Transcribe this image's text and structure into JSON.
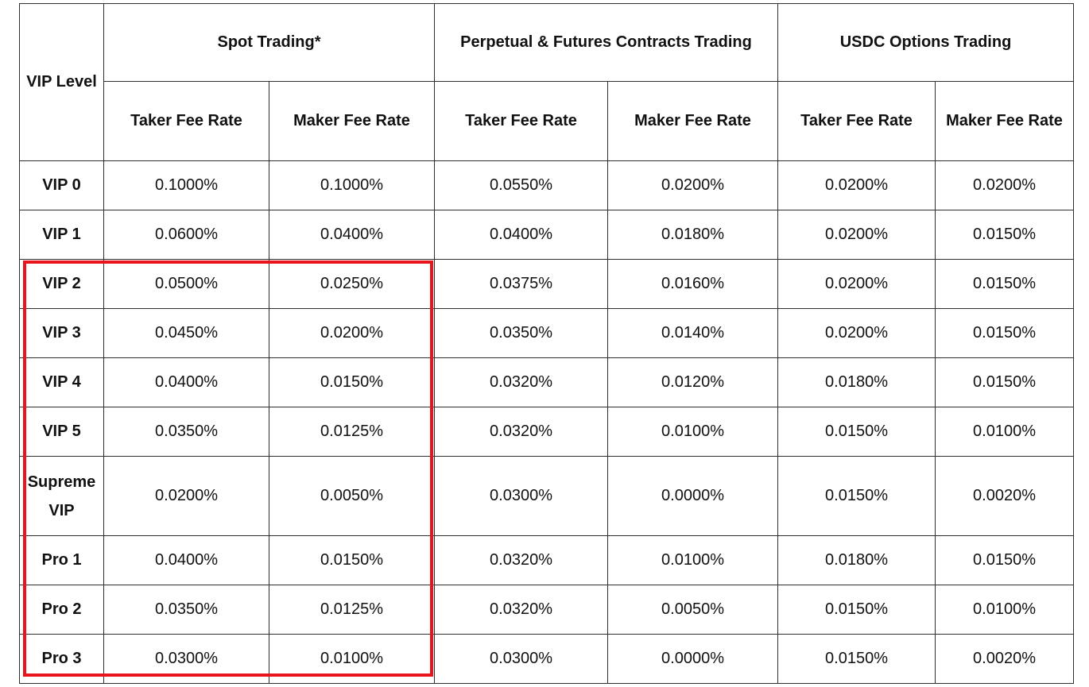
{
  "header": {
    "vip_level": "VIP Level",
    "spot": "Spot Trading*",
    "perp": "Perpetual & Futures Contracts Trading",
    "usdc": "USDC Options Trading",
    "sub": [
      "Taker Fee Rate",
      "Maker Fee Rate",
      "Taker Fee Rate",
      "Maker Fee Rate",
      "Taker Fee Rate",
      "Maker Fee Rate"
    ]
  },
  "rows": [
    {
      "level": "VIP 0",
      "values": [
        "0.1000%",
        "0.1000%",
        "0.0550%",
        "0.0200%",
        "0.0200%",
        "0.0200%"
      ]
    },
    {
      "level": "VIP 1",
      "values": [
        "0.0600%",
        "0.0400%",
        "0.0400%",
        "0.0180%",
        "0.0200%",
        "0.0150%"
      ]
    },
    {
      "level": "VIP 2",
      "values": [
        "0.0500%",
        "0.0250%",
        "0.0375%",
        "0.0160%",
        "0.0200%",
        "0.0150%"
      ]
    },
    {
      "level": "VIP 3",
      "values": [
        "0.0450%",
        "0.0200%",
        "0.0350%",
        "0.0140%",
        "0.0200%",
        "0.0150%"
      ]
    },
    {
      "level": "VIP 4",
      "values": [
        "0.0400%",
        "0.0150%",
        "0.0320%",
        "0.0120%",
        "0.0180%",
        "0.0150%"
      ]
    },
    {
      "level": "VIP 5",
      "values": [
        "0.0350%",
        "0.0125%",
        "0.0320%",
        "0.0100%",
        "0.0150%",
        "0.0100%"
      ]
    },
    {
      "level": "Supreme VIP",
      "values": [
        "0.0200%",
        "0.0050%",
        "0.0300%",
        "0.0000%",
        "0.0150%",
        "0.0020%"
      ]
    },
    {
      "level": "Pro 1",
      "values": [
        "0.0400%",
        "0.0150%",
        "0.0320%",
        "0.0100%",
        "0.0180%",
        "0.0150%"
      ]
    },
    {
      "level": "Pro 2",
      "values": [
        "0.0350%",
        "0.0125%",
        "0.0320%",
        "0.0050%",
        "0.0150%",
        "0.0100%"
      ]
    },
    {
      "level": "Pro 3",
      "values": [
        "0.0300%",
        "0.0100%",
        "0.0300%",
        "0.0000%",
        "0.0150%",
        "0.0020%"
      ]
    }
  ],
  "colors": {
    "highlight_border": "#e8141c",
    "table_border": "#2f2f2f"
  }
}
